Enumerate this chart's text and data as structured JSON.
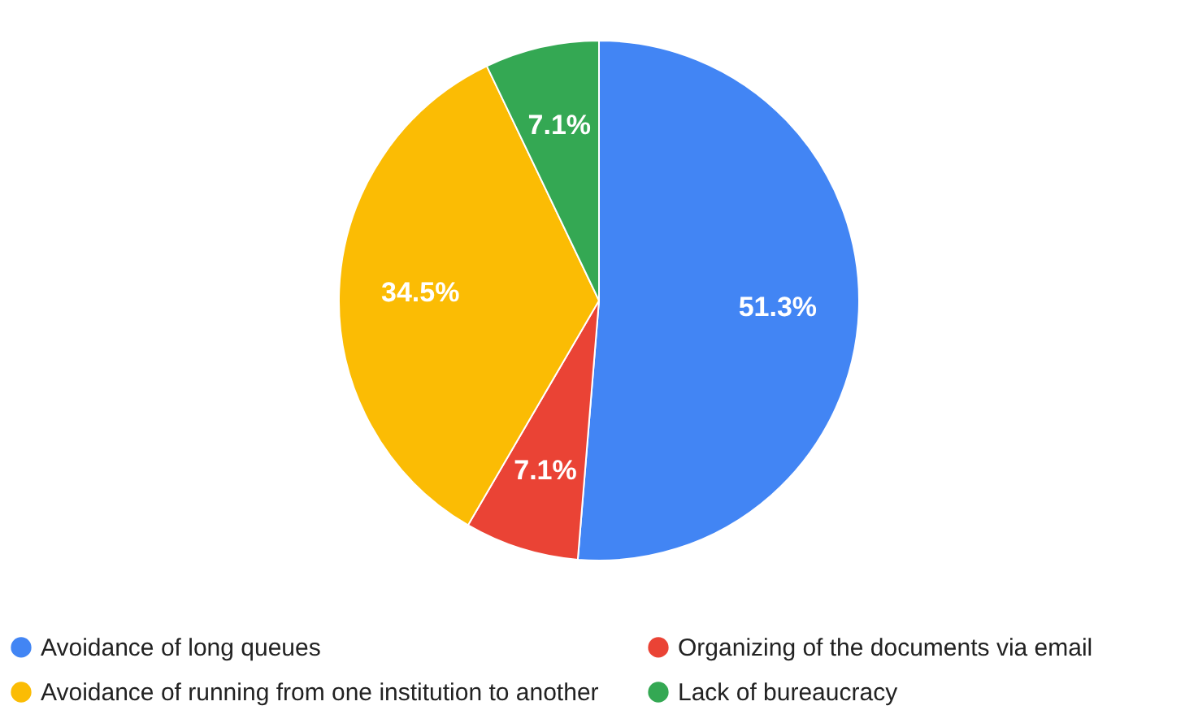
{
  "chart_data": {
    "type": "pie",
    "categories": [
      "Avoidance of long queues",
      "Organizing of the documents via email",
      "Avoidance of running from one institution to another",
      "Lack of bureaucracy"
    ],
    "values": [
      51.3,
      7.1,
      34.5,
      7.1
    ],
    "colors": [
      "#4285f4",
      "#ea4335",
      "#fbbc04",
      "#34a853"
    ],
    "value_labels": [
      "51.3%",
      "7.1%",
      "34.5%",
      "7.1%"
    ],
    "legend": "bottom"
  }
}
